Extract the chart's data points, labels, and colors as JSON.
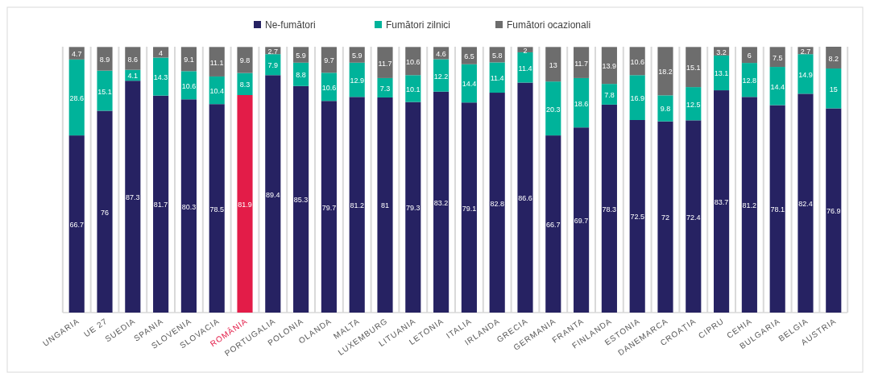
{
  "chart_data": {
    "type": "bar",
    "stacked": true,
    "data_labels": true,
    "grid": "x",
    "legend": "top",
    "categories": [
      "UNGARIA",
      "UE 27",
      "SUEDIA",
      "SPANIA",
      "SLOVENIA",
      "SLOVACIA",
      "ROMÂNIA",
      "PORTUGALIA",
      "POLONIA",
      "OLANDA",
      "MALTA",
      "LUXEMBURG",
      "LITUANIA",
      "LETONIA",
      "ITALIA",
      "IRLANDA",
      "GRECIA",
      "GERMANIA",
      "FRANTA",
      "FINLANDA",
      "ESTONIA",
      "DANEMARCA",
      "CROAȚIA",
      "CIPRU",
      "CEHIA",
      "BULGARIA",
      "BELGIA",
      "AUSTRIA"
    ],
    "series": [
      {
        "name": "Ne-fumători",
        "color": "#262262",
        "colors": [
          "#262262",
          "#262262",
          "#262262",
          "#262262",
          "#262262",
          "#262262",
          "#e31c48",
          "#262262",
          "#262262",
          "#262262",
          "#262262",
          "#262262",
          "#262262",
          "#262262",
          "#262262",
          "#262262",
          "#262262",
          "#262262",
          "#262262",
          "#262262",
          "#262262",
          "#262262",
          "#262262",
          "#262262",
          "#262262",
          "#262262",
          "#262262",
          "#262262"
        ],
        "values": [
          66.7,
          76,
          87.3,
          81.7,
          80.3,
          78.5,
          81.9,
          89.4,
          85.3,
          79.7,
          81.2,
          81,
          79.3,
          83.2,
          79.1,
          82.8,
          86.6,
          66.7,
          69.7,
          78.3,
          72.5,
          72,
          72.4,
          83.7,
          81.2,
          78.1,
          82.4,
          76.9
        ]
      },
      {
        "name": "Fumători zilnici",
        "color": "#00b39a",
        "values": [
          28.6,
          15.1,
          4.1,
          14.3,
          10.6,
          10.4,
          8.3,
          7.9,
          8.8,
          10.6,
          12.9,
          7.3,
          10.1,
          12.2,
          14.4,
          11.4,
          11.4,
          20.3,
          18.6,
          7.8,
          16.9,
          9.8,
          12.5,
          13.1,
          12.8,
          14.4,
          14.9,
          15
        ]
      },
      {
        "name": "Fumători ocazionali",
        "color": "#6d6d6d",
        "values": [
          4.7,
          8.9,
          8.6,
          4,
          9.1,
          11.1,
          9.8,
          2.7,
          5.9,
          9.7,
          5.9,
          11.7,
          10.6,
          4.6,
          6.5,
          5.8,
          2,
          13,
          11.7,
          13.9,
          10.6,
          18.2,
          15.1,
          3.2,
          6,
          7.5,
          2.7,
          8.2
        ]
      }
    ]
  }
}
